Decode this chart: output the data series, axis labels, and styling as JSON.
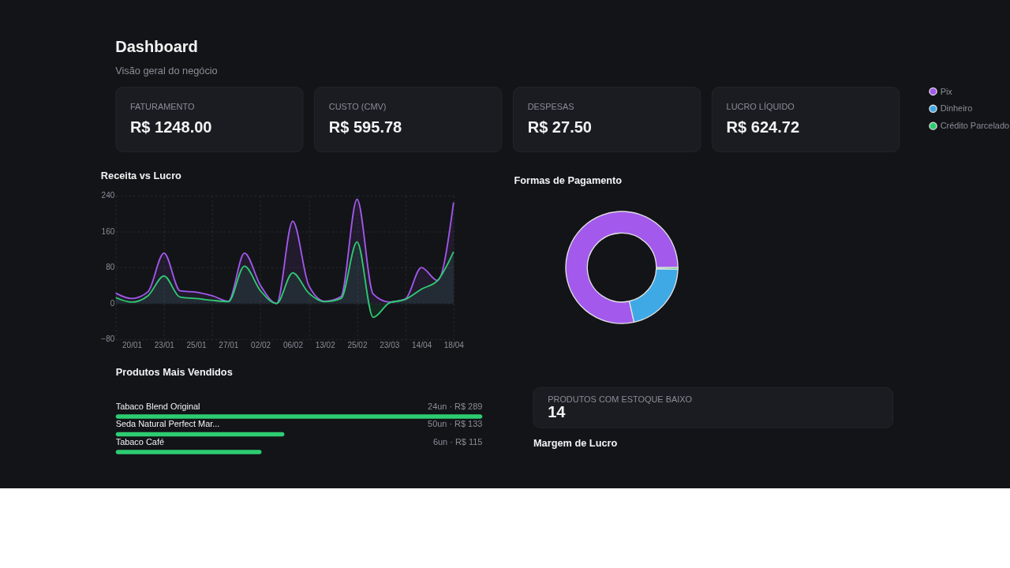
{
  "chart_data": [
    {
      "type": "other",
      "title": "Dashboard",
      "subtitle": "Visão geral do negócio",
      "annotations": [
        "FATURAMENTO",
        "R$ 1248.00",
        "CUSTO (CMV)",
        "R$ 595.78",
        "DESPESAS",
        "R$ 27.50",
        "LUCRO LÍQUIDO",
        "R$ 624.72"
      ]
    },
    {
      "type": "area",
      "title": "Receita vs Lucro",
      "categories": [
        null,
        "20/01",
        null,
        "23/01",
        null,
        "25/01",
        null,
        "27/01",
        null,
        "02/02",
        null,
        "06/02",
        null,
        "13/02",
        null,
        "25/02",
        null,
        "23/03",
        null,
        "14/04",
        null,
        "18/04"
      ],
      "series": [
        {
          "color": "#a259ec",
          "values": [
            23,
            11,
            26,
            112,
            28,
            25,
            17,
            5,
            112,
            40,
            0,
            183,
            40,
            5,
            15,
            232,
            21,
            3,
            10,
            80,
            51,
            225
          ]
        },
        {
          "color": "#2ecc71",
          "values": [
            13,
            3,
            17,
            61,
            14,
            11,
            7,
            4,
            83,
            28,
            0,
            68,
            23,
            4,
            11,
            137,
            -31,
            1,
            9,
            32,
            51,
            115
          ]
        }
      ],
      "ylim": [
        -80,
        240
      ],
      "yticks": [
        -80,
        0,
        80,
        160,
        240
      ],
      "grid": true,
      "line_style": "solid",
      "marker": "none"
    },
    {
      "type": "donut",
      "title": "Formas de Pagamento",
      "categories": [
        "Pix",
        "Dinheiro",
        "Crédito Parcelado"
      ],
      "values": [
        78.5,
        21,
        0.5
      ],
      "colors": [
        "#a259ec",
        "#3fa9e6",
        "#2ecc71"
      ],
      "legend": "right"
    },
    {
      "type": "bar",
      "orientation": "horizontal",
      "title": "Produtos Mais Vendidos",
      "categories": [
        "Tabaco Blend Original",
        "Seda Natural Perfect Mar...",
        "Tabaco Café"
      ],
      "values": [
        289,
        133,
        115
      ],
      "color": "#2ecc71",
      "value_labels": [
        "24un · R$ 289",
        "50un · R$ 133",
        "6un · R$ 115"
      ]
    },
    {
      "type": "other",
      "annotations": [
        "PRODUTOS COM ESTOQUE BAIXO",
        "14"
      ]
    },
    {
      "type": "other",
      "title": "Margem de Lucro"
    }
  ]
}
